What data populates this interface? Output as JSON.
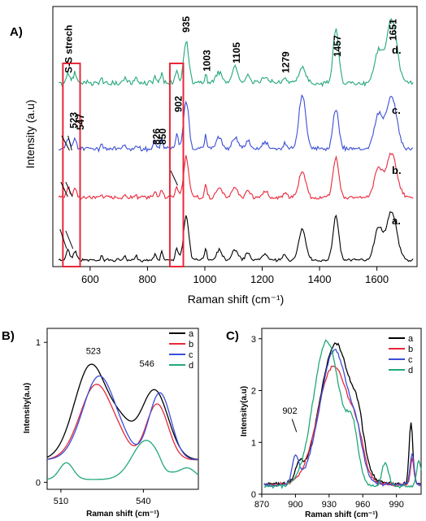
{
  "colors": {
    "a": "#000000",
    "b": "#e8283a",
    "c": "#3b4fd6",
    "d": "#22a878",
    "box": "#e8283a"
  },
  "panels": {
    "A": "A)",
    "B": "B)",
    "C": "C)"
  },
  "chart_data": [
    {
      "type": "line",
      "panel": "A",
      "xlabel": "Raman shift (cm⁻¹)",
      "ylabel": "Intensity (a.u)",
      "xlim": [
        470,
        1740
      ],
      "ylim": [
        0,
        1
      ],
      "xticks": [
        "600",
        "800",
        "1000",
        "1200",
        "1400",
        "1600"
      ],
      "xtick_values": [
        600,
        800,
        1000,
        1200,
        1400,
        1600
      ],
      "series": [
        {
          "name": "a.",
          "label": "a."
        },
        {
          "name": "b.",
          "label": "b."
        },
        {
          "name": "c.",
          "label": "c."
        },
        {
          "name": "d.",
          "label": "d."
        }
      ],
      "annotations": [
        {
          "text": "S-S strech"
        },
        {
          "text": "523"
        },
        {
          "text": "547"
        },
        {
          "text": "826"
        },
        {
          "text": "850"
        },
        {
          "text": "902"
        },
        {
          "text": "935"
        },
        {
          "text": "1003"
        },
        {
          "text": "1105"
        },
        {
          "text": "1279"
        },
        {
          "text": "1457"
        },
        {
          "text": "1651"
        }
      ],
      "highlight_ranges": [
        [
          505,
          565
        ],
        [
          878,
          925
        ]
      ]
    },
    {
      "type": "line",
      "panel": "B",
      "xlabel": "Raman shift (cm⁻¹)",
      "ylabel": "Intensity(a.u)",
      "xlim": [
        505,
        560
      ],
      "ylim": [
        -0.05,
        1.1
      ],
      "xticks": [
        "510",
        "540"
      ],
      "xtick_values": [
        510,
        540
      ],
      "yticks": [
        "0",
        "1"
      ],
      "ytick_values": [
        0,
        1
      ],
      "legend": [
        "a",
        "b",
        "c",
        "d"
      ],
      "legend_position": "top-right",
      "annotations": [
        {
          "text": "523"
        },
        {
          "text": "546"
        }
      ]
    },
    {
      "type": "line",
      "panel": "C",
      "xlabel": "Raman shift (cm⁻¹)",
      "ylabel": "Intensity(a.u)",
      "xlim": [
        870,
        1012
      ],
      "ylim": [
        0,
        3.2
      ],
      "xticks": [
        "870",
        "900",
        "930",
        "960",
        "990"
      ],
      "xtick_values": [
        870,
        900,
        930,
        960,
        990
      ],
      "yticks": [
        "0",
        "1",
        "2",
        "3"
      ],
      "ytick_values": [
        0,
        1,
        2,
        3
      ],
      "legend": [
        "a",
        "b",
        "c",
        "d"
      ],
      "legend_position": "top-right",
      "annotations": [
        {
          "text": "902"
        }
      ]
    }
  ]
}
